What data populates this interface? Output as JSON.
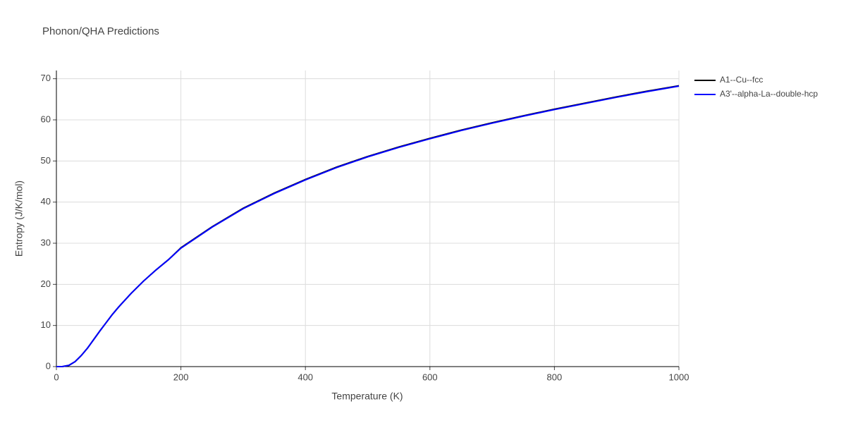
{
  "chart_data": {
    "type": "line",
    "title": "Phonon/QHA Predictions",
    "x_label": "Temperature (K)",
    "y_label": "Entropy (J/K/mol)",
    "x": [
      0,
      10,
      20,
      30,
      40,
      50,
      60,
      70,
      80,
      90,
      100,
      120,
      140,
      160,
      180,
      200,
      250,
      300,
      350,
      400,
      450,
      500,
      550,
      600,
      650,
      700,
      750,
      800,
      850,
      900,
      950,
      1000
    ],
    "series": [
      {
        "name": "A1--Cu--fcc",
        "color": "#000000",
        "values": [
          0,
          0.02,
          0.3,
          1.2,
          2.7,
          4.5,
          6.6,
          8.7,
          10.7,
          12.7,
          14.5,
          17.8,
          20.8,
          23.5,
          26.0,
          28.9,
          34.0,
          38.5,
          42.2,
          45.5,
          48.5,
          51.1,
          53.4,
          55.5,
          57.5,
          59.3,
          61.0,
          62.6,
          64.1,
          65.6,
          67.0,
          68.3
        ]
      },
      {
        "name": "A3'--alpha-La--double-hcp",
        "color": "#0000ff",
        "values": [
          0,
          0.02,
          0.3,
          1.2,
          2.7,
          4.5,
          6.6,
          8.7,
          10.7,
          12.7,
          14.5,
          17.8,
          20.8,
          23.5,
          26.0,
          28.8,
          33.9,
          38.4,
          42.1,
          45.4,
          48.4,
          51.0,
          53.3,
          55.4,
          57.4,
          59.2,
          60.9,
          62.5,
          64.0,
          65.5,
          66.9,
          68.2
        ]
      }
    ],
    "xlim": [
      0,
      1000
    ],
    "xticks": [
      0,
      200,
      400,
      600,
      800,
      1000
    ],
    "ylim": [
      0,
      72
    ],
    "yticks": [
      0,
      10,
      20,
      30,
      40,
      50,
      60,
      70
    ],
    "grid": true,
    "legend": "right"
  }
}
